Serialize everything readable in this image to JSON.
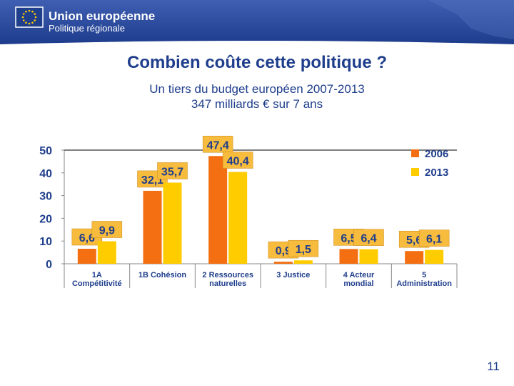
{
  "header": {
    "brand_title": "Union européenne",
    "brand_subtitle": "Politique régionale"
  },
  "slide": {
    "title": "Combien coûte cette politique ?",
    "subtitle_line1": "Un tiers du budget européen 2007-2013",
    "subtitle_line2": "347 milliards € sur 7 ans",
    "page_number": "11"
  },
  "colors": {
    "brand_blue": "#1f3e8c",
    "series_2006": "#f36f12",
    "series_2013": "#ffcc00",
    "label_box": "#f7bb3d"
  },
  "chart_data": {
    "type": "bar",
    "title": "",
    "xlabel": "",
    "ylabel": "",
    "ylim": [
      0,
      50
    ],
    "yticks": [
      0,
      10,
      20,
      30,
      40,
      50
    ],
    "grid": false,
    "legend_position": "top-right",
    "categories": [
      [
        "1A",
        "Compétitivité"
      ],
      [
        "1B Cohésion"
      ],
      [
        "2 Ressources",
        "naturelles"
      ],
      [
        "3 Justice"
      ],
      [
        "4 Acteur",
        "mondial"
      ],
      [
        "5",
        "Administration"
      ]
    ],
    "series": [
      {
        "name": "2006",
        "color": "#f36f12",
        "values": [
          6.6,
          32.1,
          47.4,
          0.9,
          6.5,
          5.6
        ],
        "labels": [
          "6,6",
          "32,1",
          "47,4",
          "0,9",
          "6,5",
          "5,6"
        ]
      },
      {
        "name": "2013",
        "color": "#ffcc00",
        "values": [
          9.9,
          35.7,
          40.4,
          1.5,
          6.4,
          6.1
        ],
        "labels": [
          "9,9",
          "35,7",
          "40,4",
          "1,5",
          "6,4",
          "6,1"
        ]
      }
    ]
  }
}
